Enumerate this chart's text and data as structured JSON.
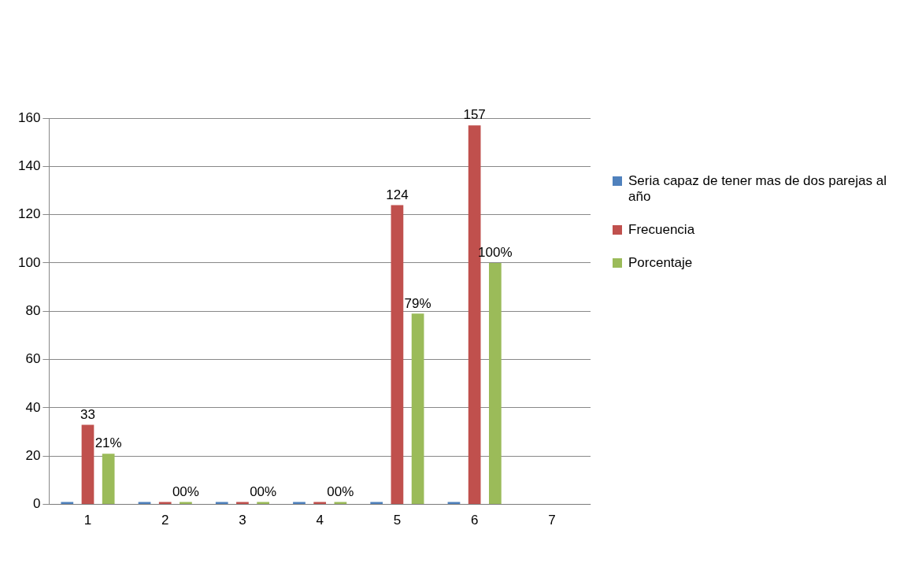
{
  "chart_data": {
    "type": "bar",
    "categories": [
      "1",
      "2",
      "3",
      "4",
      "5",
      "6",
      "7"
    ],
    "series": [
      {
        "name": "Seria capaz de tener mas de dos parejas al año",
        "color": "#4f81bd",
        "values": [
          0,
          0,
          0,
          0,
          0,
          0,
          null
        ]
      },
      {
        "name": "Frecuencia",
        "color": "#c0504d",
        "values": [
          33,
          0,
          0,
          0,
          124,
          157,
          null
        ],
        "value_labels": [
          "33",
          null,
          null,
          null,
          "124",
          "157",
          null
        ]
      },
      {
        "name": "Porcentaje",
        "color": "#9bbb59",
        "values": [
          21,
          0,
          0,
          0,
          79,
          100,
          null
        ],
        "value_labels": [
          "21%",
          "00%",
          "00%",
          "00%",
          "79%",
          "100%",
          null
        ]
      }
    ],
    "ylim": [
      0,
      160
    ],
    "yticks": [
      0,
      20,
      40,
      60,
      80,
      100,
      120,
      140,
      160
    ],
    "grid": "y",
    "legend": "right"
  }
}
